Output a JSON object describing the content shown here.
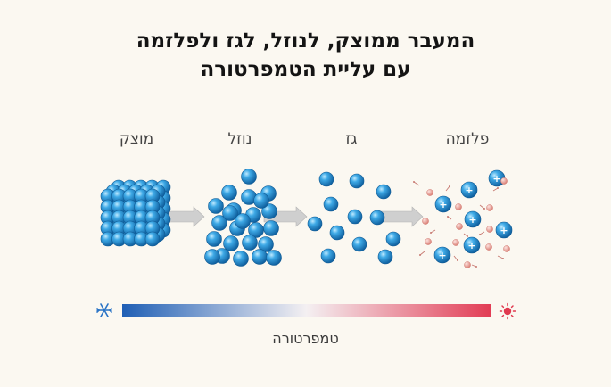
{
  "title": {
    "line1": "המעבר ממוצק, לנוזל, לגז ולפלזמה",
    "line2": "עם עליית הטמפרטורה"
  },
  "states": [
    {
      "id": "solid",
      "label": "מוצק"
    },
    {
      "id": "liquid",
      "label": "נוזל"
    },
    {
      "id": "gas",
      "label": "גז"
    },
    {
      "id": "plasma",
      "label": "פלזמה"
    }
  ],
  "temperature_axis": {
    "label": "טמפרטורה",
    "cold_icon": "snowflake-icon",
    "hot_icon": "sun-icon",
    "gradient_colors": [
      "#1f5fb5",
      "#f4f0f2",
      "#e23d55"
    ]
  },
  "colors": {
    "particle": "#2b95d6",
    "arrow": "#c9c9c9",
    "electron": "#eba9a2",
    "cold": "#2a74c6",
    "hot": "#e0394f"
  },
  "ion_symbol": "+"
}
